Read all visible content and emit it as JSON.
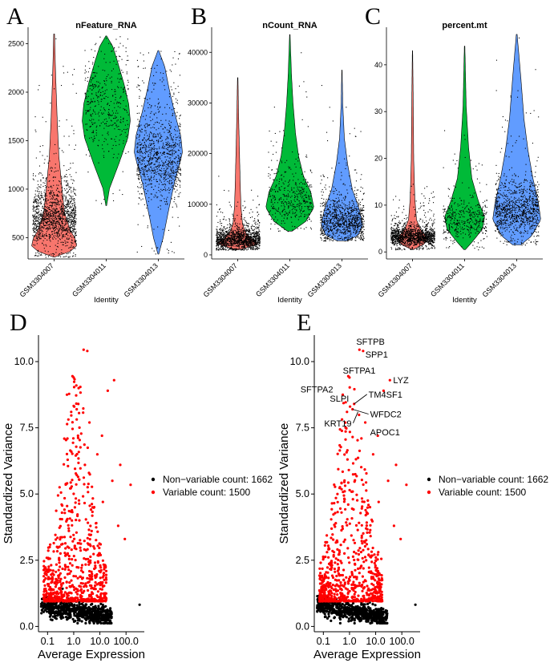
{
  "panels": [
    {
      "letter": "A",
      "title": "nFeature_RNA",
      "ylim": [
        280,
        2620
      ],
      "yticks": [
        500,
        1000,
        1500,
        2000,
        2500
      ],
      "xlabel": "Identity",
      "groups": [
        {
          "name": "GSM3304007",
          "color": "#F8766D",
          "min": 300,
          "max": 2600,
          "peak": 650,
          "spread": 180,
          "n": 1400
        },
        {
          "name": "GSM3304011",
          "color": "#00BA38",
          "min": 830,
          "max": 2580,
          "peak": 1750,
          "spread": 300,
          "n": 420
        },
        {
          "name": "GSM3304013",
          "color": "#619CFF",
          "min": 330,
          "max": 2430,
          "peak": 1250,
          "spread": 280,
          "n": 1000
        }
      ]
    },
    {
      "letter": "B",
      "title": "nCount_RNA",
      "ylim": [
        -800,
        44000
      ],
      "yticks": [
        0,
        10000,
        20000,
        30000,
        40000
      ],
      "xlabel": "Identity",
      "groups": [
        {
          "name": "GSM3304007",
          "color": "#F8766D",
          "min": 1000,
          "max": 35000,
          "peak": 2800,
          "spread": 1200,
          "n": 1400
        },
        {
          "name": "GSM3304011",
          "color": "#00BA38",
          "min": 4700,
          "max": 43500,
          "peak": 10000,
          "spread": 3500,
          "n": 420
        },
        {
          "name": "GSM3304013",
          "color": "#619CFF",
          "min": 2800,
          "max": 36500,
          "peak": 6000,
          "spread": 2500,
          "n": 1000
        }
      ]
    },
    {
      "letter": "C",
      "title": "percent.mt",
      "ylim": [
        -1.5,
        47
      ],
      "yticks": [
        0,
        10,
        20,
        30,
        40
      ],
      "xlabel": "Identity",
      "groups": [
        {
          "name": "GSM3304007",
          "color": "#F8766D",
          "min": 0.5,
          "max": 43,
          "peak": 3,
          "spread": 1.2,
          "n": 1400
        },
        {
          "name": "GSM3304011",
          "color": "#00BA38",
          "min": 0.5,
          "max": 44,
          "peak": 6,
          "spread": 2.5,
          "n": 420
        },
        {
          "name": "GSM3304013",
          "color": "#619CFF",
          "min": 1.5,
          "max": 46.5,
          "peak": 8,
          "spread": 3.5,
          "n": 1000
        }
      ]
    }
  ],
  "scatter": [
    {
      "letter": "D",
      "labels": []
    },
    {
      "letter": "E",
      "labels": [
        {
          "gene": "SFTPB",
          "x": 2.4,
          "y": 10.45
        },
        {
          "gene": "SPP1",
          "x": 3.5,
          "y": 10.4
        },
        {
          "gene": "SFTPA1",
          "x": 0.85,
          "y": 9.4
        },
        {
          "gene": "LYZ",
          "x": 35,
          "y": 9.3
        },
        {
          "gene": "SFTPA2",
          "x": 0.55,
          "y": 8.75
        },
        {
          "gene": "TM4SF1",
          "x": 1.5,
          "y": 8.4
        },
        {
          "gene": "SLPI",
          "x": 1.1,
          "y": 8.3
        },
        {
          "gene": "WFDC2",
          "x": 1.3,
          "y": 8.2
        },
        {
          "gene": "KRT19",
          "x": 2.1,
          "y": 8.1
        },
        {
          "gene": "APOC1",
          "x": 4.0,
          "y": 7.7
        }
      ]
    }
  ],
  "chart_data": [
    {
      "type": "violin",
      "title": "nFeature_RNA",
      "xlabel": "Identity",
      "ylabel": "",
      "categories": [
        "GSM3304007",
        "GSM3304011",
        "GSM3304013"
      ],
      "median": [
        720,
        1720,
        1280
      ],
      "min": [
        300,
        830,
        330
      ],
      "max": [
        2600,
        2580,
        2430
      ],
      "ylim": [
        280,
        2620
      ]
    },
    {
      "type": "violin",
      "title": "nCount_RNA",
      "xlabel": "Identity",
      "ylabel": "",
      "categories": [
        "GSM3304007",
        "GSM3304011",
        "GSM3304013"
      ],
      "median": [
        3000,
        11000,
        7000
      ],
      "min": [
        1000,
        4700,
        2800
      ],
      "max": [
        35000,
        43500,
        36500
      ],
      "ylim": [
        -800,
        44000
      ]
    },
    {
      "type": "violin",
      "title": "percent.mt",
      "xlabel": "Identity",
      "ylabel": "",
      "categories": [
        "GSM3304007",
        "GSM3304011",
        "GSM3304013"
      ],
      "median": [
        3,
        6,
        9
      ],
      "min": [
        0.5,
        0.5,
        1.5
      ],
      "max": [
        43,
        44,
        46.5
      ],
      "ylim": [
        -1.5,
        47
      ]
    },
    {
      "type": "scatter",
      "title": "",
      "xlabel": "Average Expression",
      "ylabel": "Standardized Variance",
      "xscale": "log10",
      "xticks": [
        0.1,
        1.0,
        10.0,
        100.0
      ],
      "yticks": [
        0.0,
        2.5,
        5.0,
        7.5,
        10.0
      ],
      "xlim": [
        0.045,
        500
      ],
      "ylim": [
        -0.2,
        11
      ],
      "series": [
        {
          "name": "Non−variable count: 1662",
          "color": "#000000",
          "count": 1662
        },
        {
          "name": "Variable count: 1500",
          "color": "#FF0000",
          "count": 1500
        }
      ]
    },
    {
      "type": "scatter",
      "title": "",
      "xlabel": "Average Expression",
      "ylabel": "Standardized Variance",
      "xscale": "log10",
      "xticks": [
        0.1,
        1.0,
        10.0,
        100.0
      ],
      "yticks": [
        0.0,
        2.5,
        5.0,
        7.5,
        10.0
      ],
      "xlim": [
        0.045,
        500
      ],
      "ylim": [
        -0.2,
        11
      ],
      "series": [
        {
          "name": "Non−variable count: 1662",
          "color": "#000000",
          "count": 1662
        },
        {
          "name": "Variable count: 1500",
          "color": "#FF0000",
          "count": 1500
        }
      ],
      "annotations": [
        "SFTPB",
        "SPP1",
        "SFTPA1",
        "LYZ",
        "SFTPA2",
        "TM4SF1",
        "SLPI",
        "WFDC2",
        "KRT19",
        "APOC1"
      ]
    }
  ]
}
